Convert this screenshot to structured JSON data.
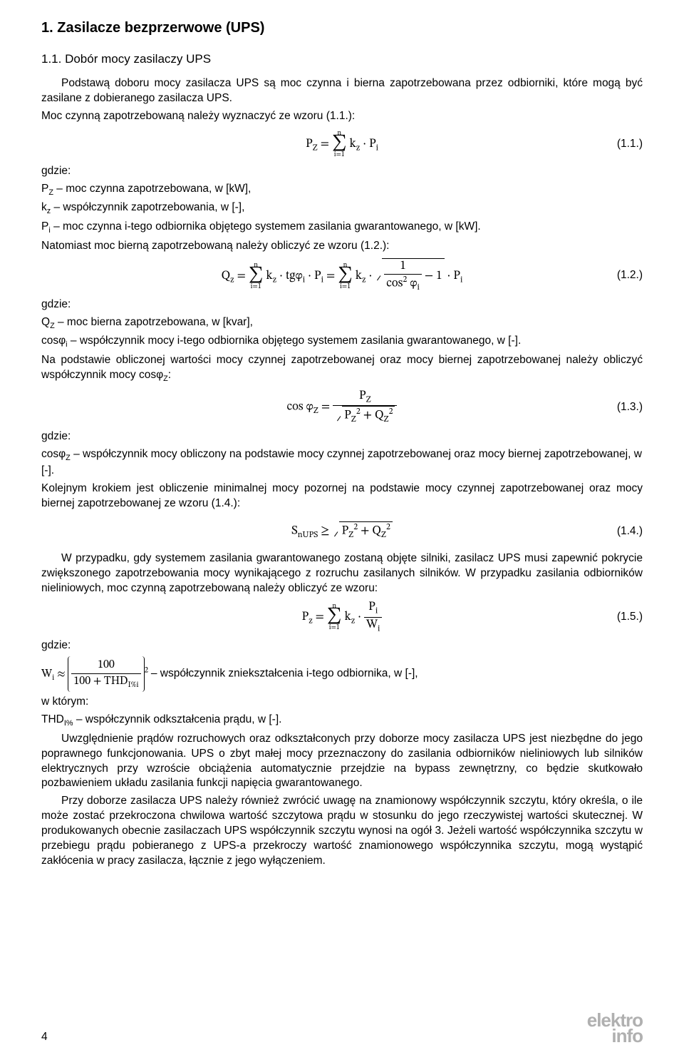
{
  "title": "1. Zasilacze bezprzerwowe (UPS)",
  "subtitle": "1.1. Dobór mocy zasilaczy UPS",
  "p1": "Podstawą doboru mocy zasilacza UPS są moc czynna i bierna zapotrzebowana przez odbiorniki, które mogą być zasilane z dobieranego zasilacza UPS.",
  "p2": "Moc czynną zapotrzebowaną należy wyznaczyć ze wzoru (1.1.):",
  "eq1_num": "(1.1.)",
  "gdzie": "gdzie:",
  "d1a": "P",
  "d1a2": "Z",
  "d1b": " – moc czynna zapotrzebowana, w [kW],",
  "d2a": "k",
  "d2a2": "z",
  "d2b": " – współczynnik zapotrzebowania, w [-],",
  "d3a": "P",
  "d3a2": "i",
  "d3b": " – moc czynna i-tego odbiornika objętego systemem zasilania gwarantowanego, w [kW].",
  "p3": "Natomiast moc bierną zapotrzebowaną należy obliczyć ze wzoru (1.2.):",
  "eq2_num": "(1.2.)",
  "d4a": "Q",
  "d4a2": "Z",
  "d4b": " – moc bierna zapotrzebowana, w [kvar],",
  "d5a": "cosφ",
  "d5a2": "i",
  "d5b": " – współczynnik mocy i-tego odbiornika objętego systemem zasilania gwarantowanego, w [-].",
  "p4a": "Na podstawie obliczonej wartości mocy czynnej zapotrzebowanej oraz mocy biernej zapotrzebowanej należy obliczyć współczynnik mocy cosφ",
  "p4a2": "Z",
  "p4b": ":",
  "eq3_num": "(1.3.)",
  "d6a": "cosφ",
  "d6a2": "Z",
  "d6b": " – współczynnik mocy obliczony na podstawie mocy czynnej zapotrzebowanej oraz mocy biernej zapotrzebowanej, w [-].",
  "p5": "Kolejnym krokiem jest obliczenie minimalnej mocy pozornej na podstawie mocy czynnej zapotrzebowanej oraz mocy biernej zapotrzebowanej ze wzoru (1.4.):",
  "eq4_num": "(1.4.)",
  "p6": "W przypadku, gdy systemem zasilania gwarantowanego zostaną objęte silniki, zasilacz UPS musi zapewnić pokrycie zwiększonego zapotrzebowania mocy wynikającego z rozruchu zasilanych silników. W przypadku zasilania odbiorników nieliniowych, moc czynną zapotrzebowaną należy obliczyć ze wzoru:",
  "eq5_num": "(1.5.)",
  "d7b": " – współczynnik zniekształcenia i-tego odbiornika, w [-],",
  "wktorym": "w którym:",
  "d8a": "THD",
  "d8a2": "I%",
  "d8b": " – współczynnik odkształcenia prądu, w [-].",
  "p7": "Uwzględnienie prądów rozruchowych oraz odkształconych przy doborze mocy zasilacza UPS jest niezbędne do jego poprawnego funkcjonowania. UPS o zbyt małej mocy przeznaczony do zasilania odbiorników nieliniowych lub silników elektrycznych przy wzroście obciążenia automatycznie przejdzie na bypass zewnętrzny, co będzie skutkowało pozbawieniem układu zasilania funkcji napięcia gwarantowanego.",
  "p8": "Przy doborze zasilacza UPS należy również zwrócić uwagę na znamionowy współczynnik szczytu, który określa, o ile może zostać przekroczona chwilowa wartość szczytowa prądu w stosunku do jego rzeczywistej wartości skutecznej. W produkowanych obecnie zasilaczach UPS współczynnik szczytu wynosi na ogół 3. Jeżeli wartość współczynnika szczytu w przebiegu prądu pobieranego z UPS-a przekroczy wartość znamionowego współczynnika szczytu, mogą wystąpić zakłócenia w pracy zasilacza, łącznie z jego wyłączeniem.",
  "pagenum": "4",
  "logo1": "elektro",
  "logo2": "info"
}
